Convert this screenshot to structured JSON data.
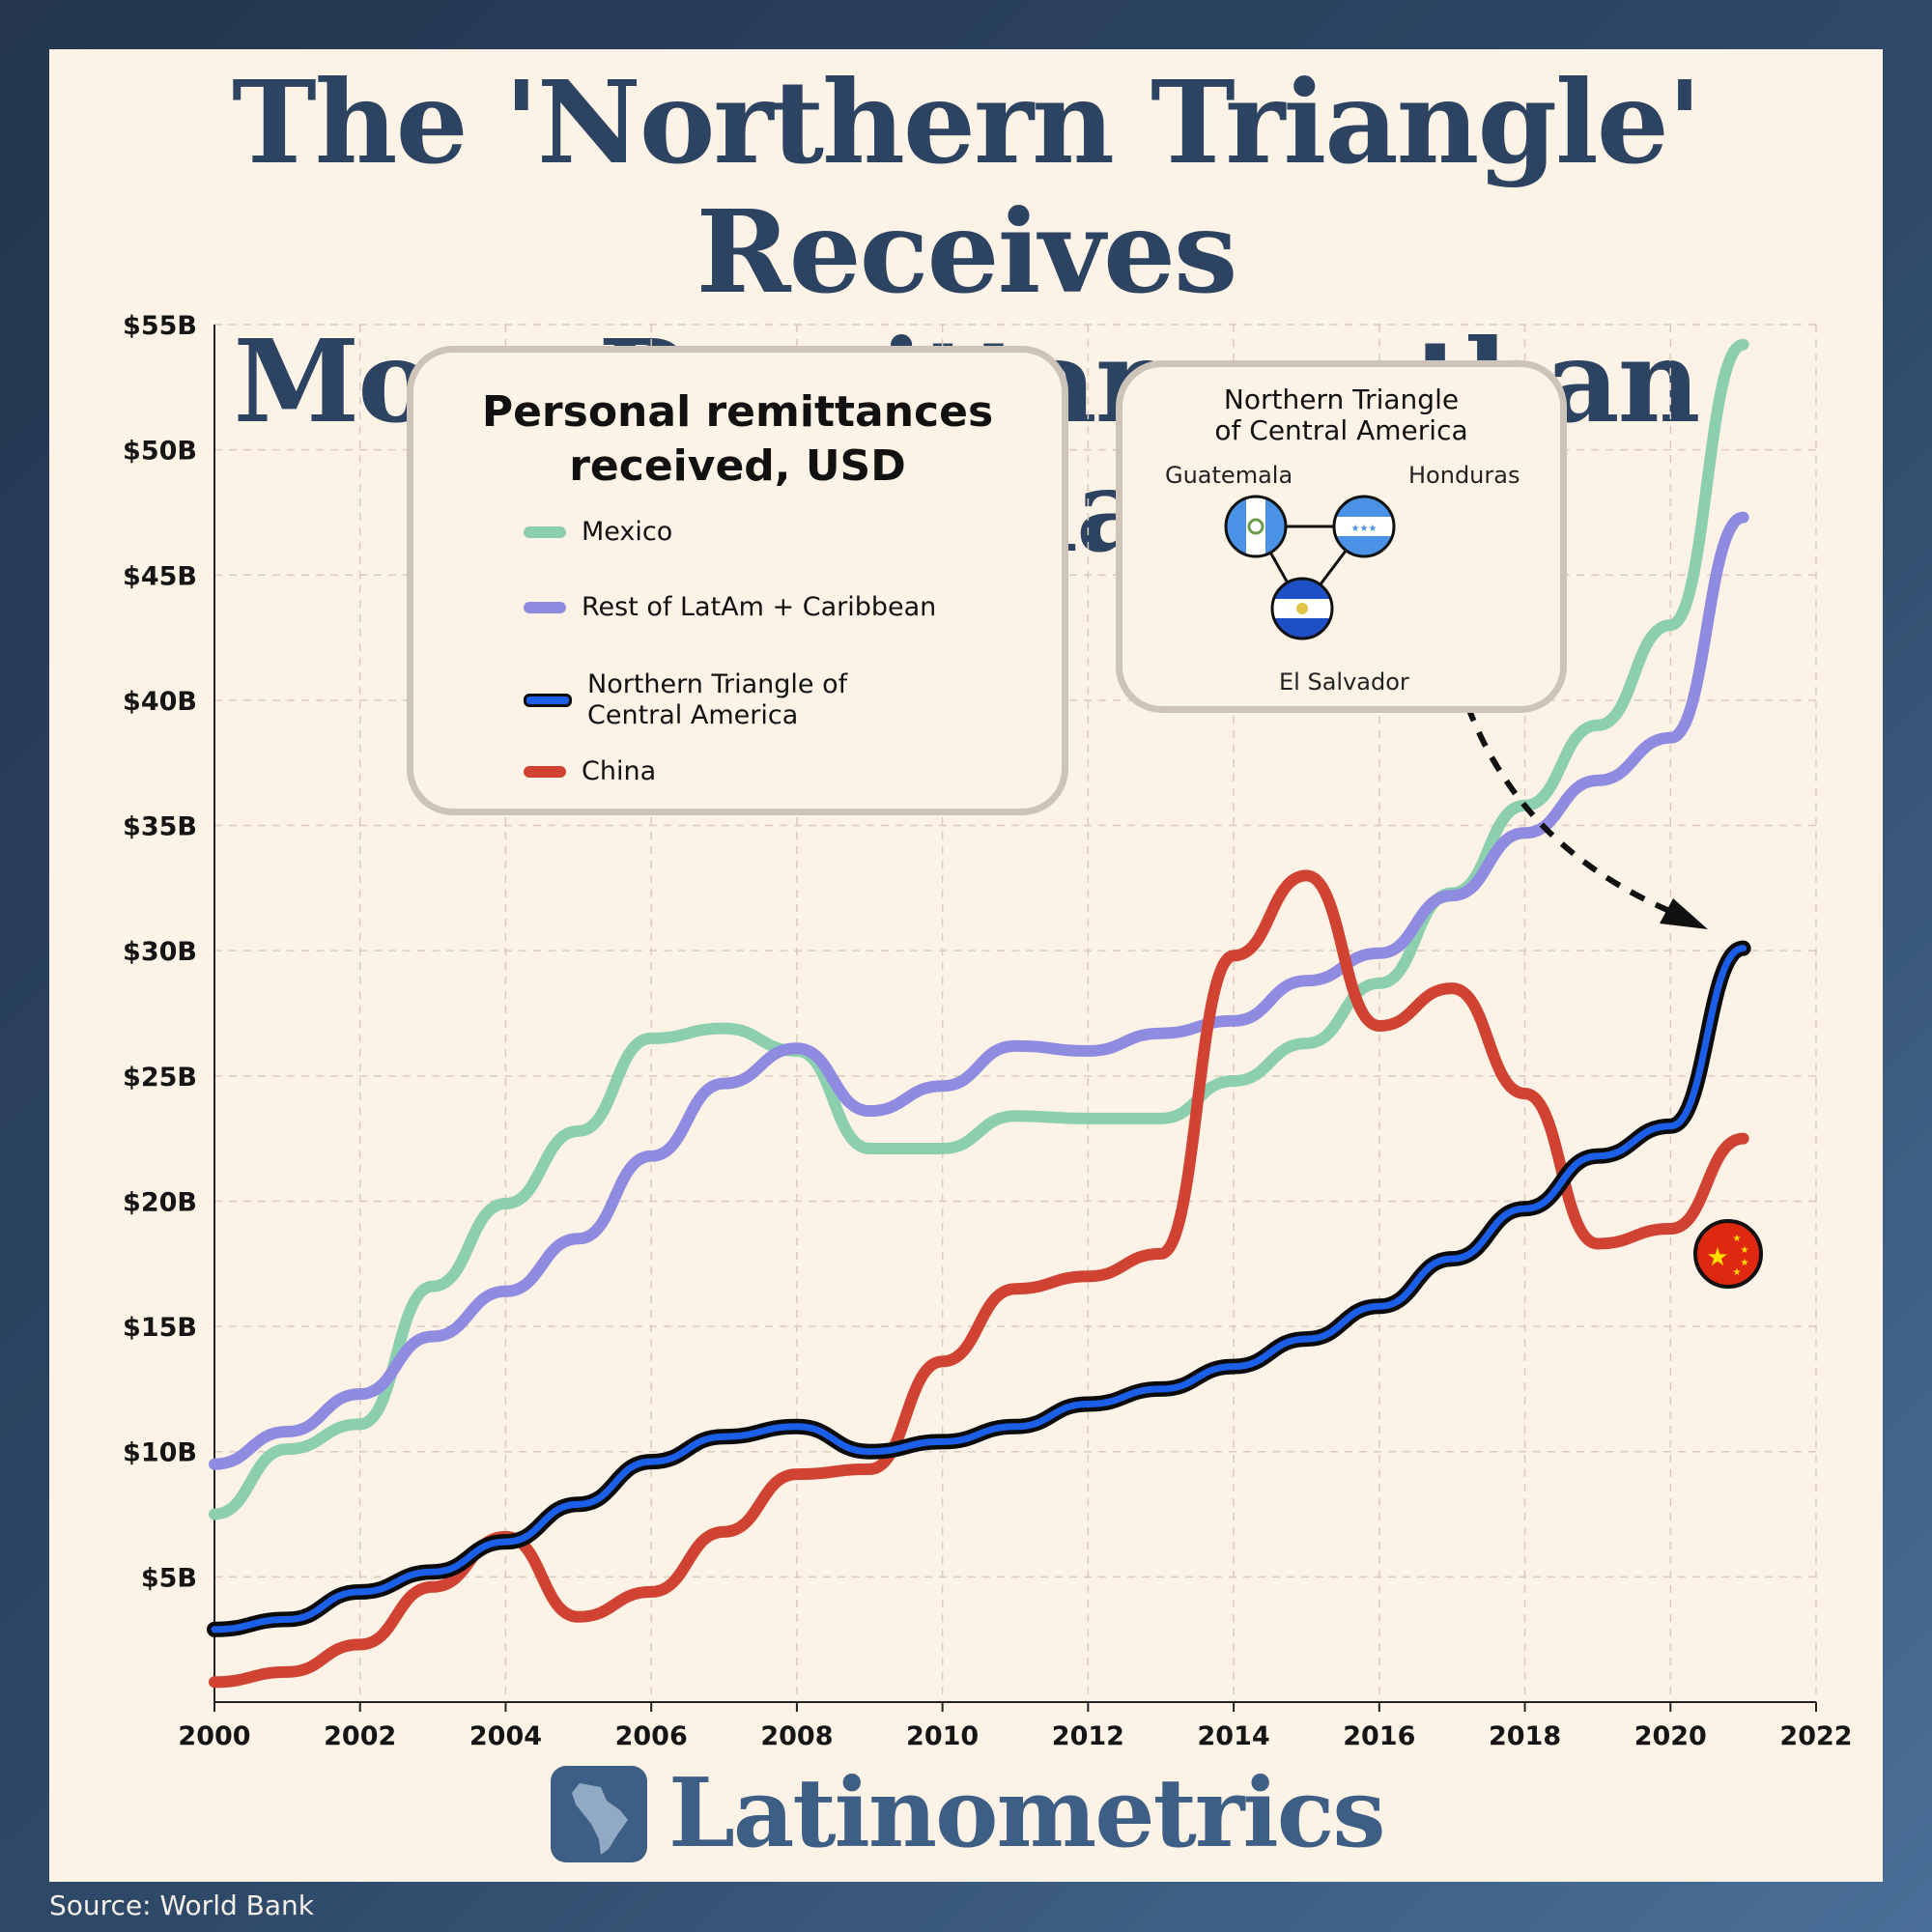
{
  "title_lines": [
    "The 'Northern Triangle' Receives",
    "More Remittances than China"
  ],
  "brand": "Latinometrics",
  "source": "Source: World Bank",
  "legend": {
    "title_lines": [
      "Personal remittances",
      "received, USD"
    ]
  },
  "inset": {
    "title_lines": [
      "Northern Triangle",
      "of Central America"
    ],
    "countries": [
      "Guatemala",
      "Honduras",
      "El Salvador"
    ]
  },
  "chart_data": {
    "type": "line",
    "x": [
      2000,
      2001,
      2002,
      2003,
      2004,
      2005,
      2006,
      2007,
      2008,
      2009,
      2010,
      2011,
      2012,
      2013,
      2014,
      2015,
      2016,
      2017,
      2018,
      2019,
      2020,
      2021
    ],
    "xlim": [
      2000,
      2022
    ],
    "ylim": [
      0,
      55
    ],
    "x_ticks": [
      "2000",
      "2002",
      "2004",
      "2006",
      "2008",
      "2010",
      "2012",
      "2014",
      "2016",
      "2018",
      "2020",
      "2022"
    ],
    "y_ticks": [
      "$5B",
      "$10B",
      "$15B",
      "$20B",
      "$25B",
      "$30B",
      "$35B",
      "$40B",
      "$45B",
      "$50B",
      "$55B"
    ],
    "y_tick_values": [
      5,
      10,
      15,
      20,
      25,
      30,
      35,
      40,
      45,
      50,
      55
    ],
    "x_tick_values": [
      2000,
      2002,
      2004,
      2006,
      2008,
      2010,
      2012,
      2014,
      2016,
      2018,
      2020,
      2022
    ],
    "grid": true,
    "legend_position": "top-left",
    "series": [
      {
        "name": "Mexico",
        "color": "#8ccfaf",
        "values": [
          7.5,
          10.1,
          11.1,
          16.6,
          19.9,
          22.8,
          26.5,
          26.9,
          26.0,
          22.1,
          22.1,
          23.4,
          23.3,
          23.3,
          24.8,
          26.3,
          28.7,
          32.3,
          35.8,
          39.0,
          43.0,
          54.2
        ]
      },
      {
        "name": "Rest of LatAm + Caribbean",
        "color": "#8f8be0",
        "values": [
          9.5,
          10.8,
          12.3,
          14.6,
          16.4,
          18.5,
          21.8,
          24.7,
          26.1,
          23.6,
          24.6,
          26.2,
          26.0,
          26.7,
          27.2,
          28.8,
          29.9,
          32.2,
          34.7,
          36.8,
          38.5,
          47.3
        ]
      },
      {
        "name": "Northern Triangle of\nCentral America",
        "color": "#1b5ee8",
        "outline": "#0b0b0b",
        "values": [
          2.9,
          3.3,
          4.4,
          5.2,
          6.4,
          7.9,
          9.6,
          10.6,
          11.0,
          10.0,
          10.4,
          11.0,
          11.9,
          12.5,
          13.4,
          14.5,
          15.8,
          17.7,
          19.7,
          21.8,
          23.0,
          30.1
        ]
      },
      {
        "name": "China",
        "color": "#d04332",
        "values": [
          0.8,
          1.2,
          2.3,
          4.6,
          6.6,
          3.4,
          4.4,
          6.8,
          9.1,
          9.3,
          13.6,
          16.5,
          17.0,
          17.9,
          29.8,
          33.0,
          27.0,
          28.5,
          24.3,
          18.3,
          18.9,
          22.5
        ]
      }
    ]
  }
}
